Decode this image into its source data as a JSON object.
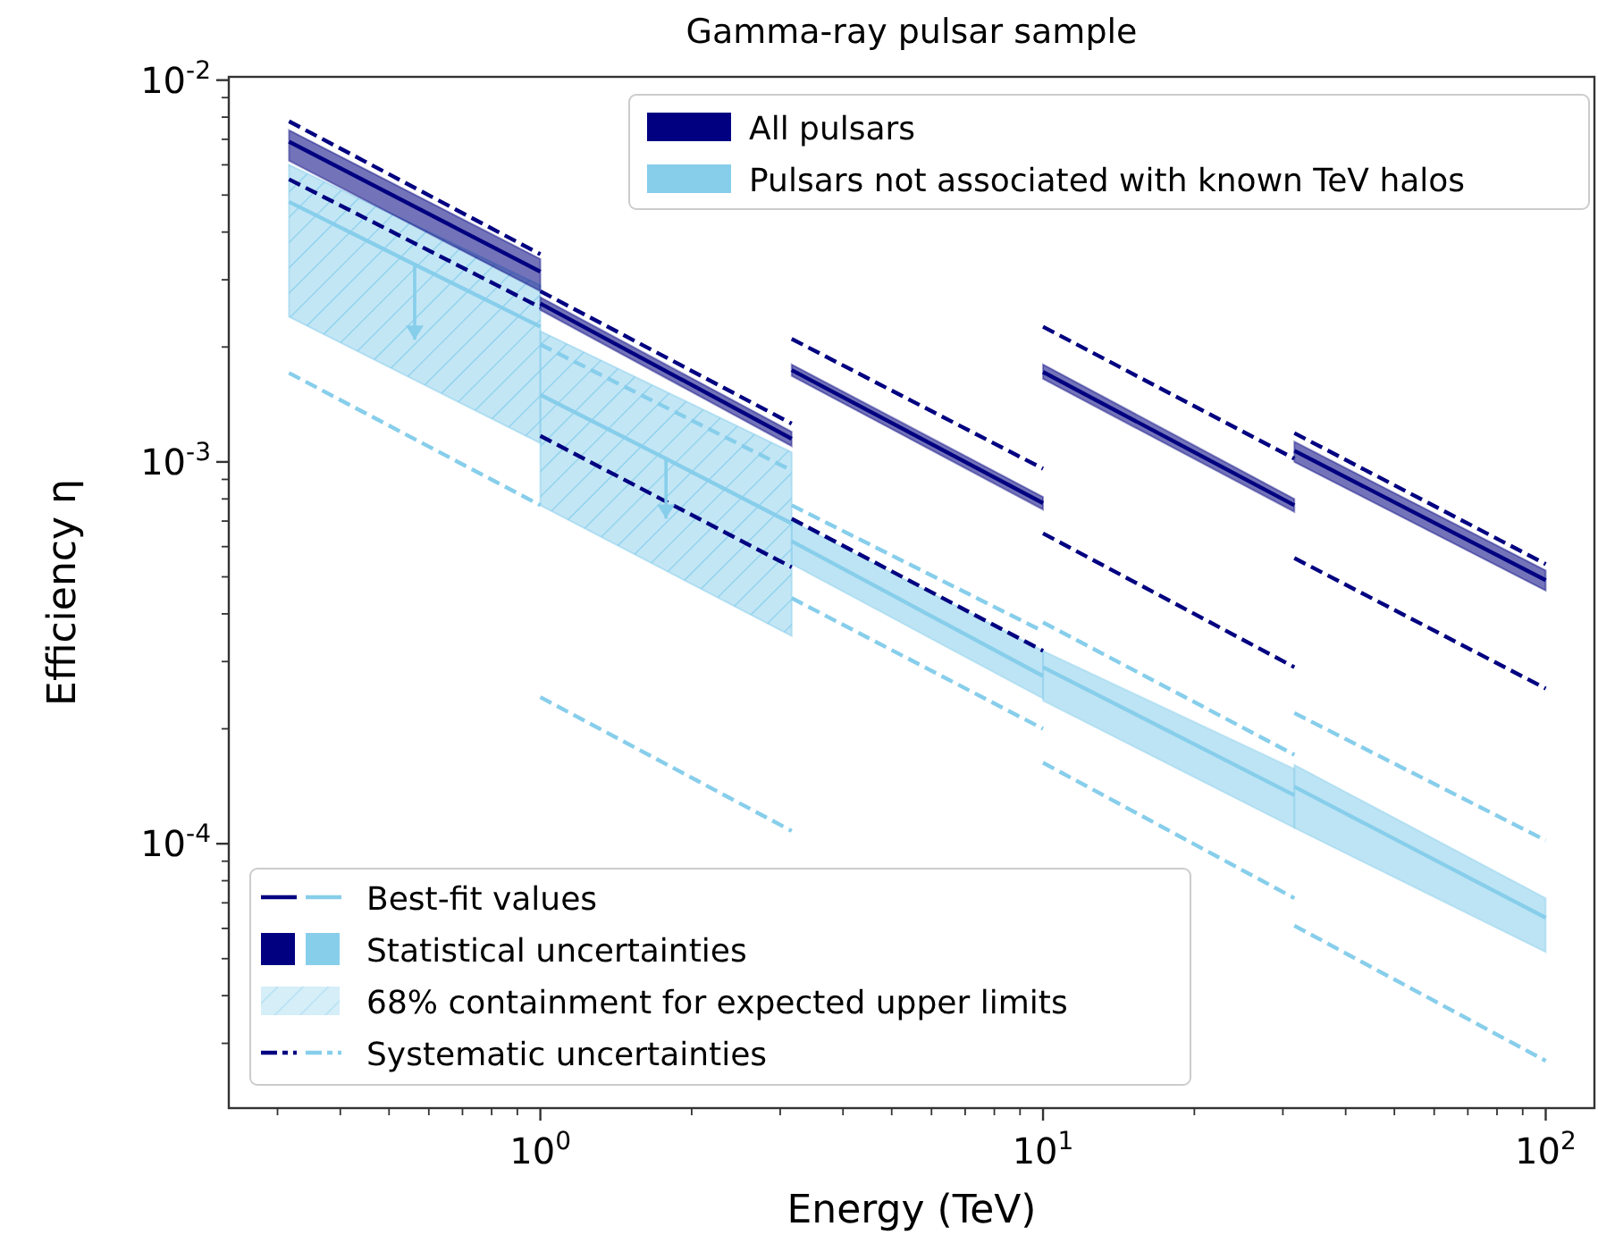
{
  "chart_data": {
    "type": "line",
    "title": "Gamma-ray pulsar sample",
    "xlabel": "Energy (TeV)",
    "ylabel": "Efficiency η",
    "log": "xy",
    "grid": false,
    "legend": "top right",
    "xlim": [
      0.24,
      125
    ],
    "ylim": [
      2.03e-05,
      0.0102
    ],
    "xticks": [
      {
        "value": 0.3,
        "label": null
      },
      {
        "value": 0.4,
        "label": null
      },
      {
        "value": 0.5,
        "label": null
      },
      {
        "value": 0.6,
        "label": null
      },
      {
        "value": 0.7,
        "label": null
      },
      {
        "value": 0.8,
        "label": null
      },
      {
        "value": 0.9,
        "label": null
      },
      {
        "value": 1,
        "label": "10$^{0}$"
      },
      {
        "value": 2,
        "label": null
      },
      {
        "value": 3,
        "label": null
      },
      {
        "value": 4,
        "label": null
      },
      {
        "value": 5,
        "label": null
      },
      {
        "value": 6,
        "label": null
      },
      {
        "value": 7,
        "label": null
      },
      {
        "value": 8,
        "label": null
      },
      {
        "value": 9,
        "label": null
      },
      {
        "value": 10,
        "label": "10$^{1}$"
      },
      {
        "value": 20,
        "label": null
      },
      {
        "value": 30,
        "label": null
      },
      {
        "value": 40,
        "label": null
      },
      {
        "value": 50,
        "label": null
      },
      {
        "value": 60,
        "label": null
      },
      {
        "value": 70,
        "label": null
      },
      {
        "value": 80,
        "label": null
      },
      {
        "value": 90,
        "label": null
      },
      {
        "value": 100,
        "label": "10$^{2}$"
      }
    ],
    "yticks": [
      {
        "value": 3e-05,
        "label": null
      },
      {
        "value": 4e-05,
        "label": null
      },
      {
        "value": 5e-05,
        "label": null
      },
      {
        "value": 6e-05,
        "label": null
      },
      {
        "value": 7e-05,
        "label": null
      },
      {
        "value": 8e-05,
        "label": null
      },
      {
        "value": 9e-05,
        "label": null
      },
      {
        "value": 0.0001,
        "label": "10$^{-4}$"
      },
      {
        "value": 0.0002,
        "label": null
      },
      {
        "value": 0.0003,
        "label": null
      },
      {
        "value": 0.0004,
        "label": null
      },
      {
        "value": 0.0005,
        "label": null
      },
      {
        "value": 0.0006,
        "label": null
      },
      {
        "value": 0.0007,
        "label": null
      },
      {
        "value": 0.0008,
        "label": null
      },
      {
        "value": 0.0009,
        "label": null
      },
      {
        "value": 0.001,
        "label": "10$^{-3}$"
      },
      {
        "value": 0.002,
        "label": null
      },
      {
        "value": 0.003,
        "label": null
      },
      {
        "value": 0.004,
        "label": null
      },
      {
        "value": 0.005,
        "label": null
      },
      {
        "value": 0.006,
        "label": null
      },
      {
        "value": 0.007,
        "label": null
      },
      {
        "value": 0.008,
        "label": null
      },
      {
        "value": 0.009,
        "label": null
      },
      {
        "value": 0.01,
        "label": "10$^{-2}$"
      }
    ],
    "annotations": [
      "Best-fit values",
      "Statistical uncertainties",
      "Systematic uncertainties"
    ],
    "series": [
      {
        "name": "All pulsars",
        "color": "#000080",
        "x": [
          0.3162,
          1
        ],
        "values": [
          0.0069,
          0.00315
        ],
        "lower": [
          0.00615,
          0.0028
        ],
        "upper": [
          0.0074,
          0.0034
        ]
      },
      {
        "color": "#000080",
        "x": [
          1,
          3.162
        ],
        "values": [
          0.0026,
          0.00115
        ],
        "lower": [
          0.0025,
          0.0011
        ],
        "upper": [
          0.0027,
          0.0012
        ]
      },
      {
        "color": "#000080",
        "x": [
          3.162,
          10
        ],
        "values": [
          0.00174,
          0.00078
        ],
        "lower": [
          0.00168,
          0.00075
        ],
        "upper": [
          0.0018,
          0.00081
        ]
      },
      {
        "color": "#000080",
        "x": [
          10,
          31.62
        ],
        "values": [
          0.00172,
          0.00077
        ],
        "lower": [
          0.00165,
          0.00074
        ],
        "upper": [
          0.0018,
          0.0008
        ]
      },
      {
        "color": "#000080",
        "x": [
          31.62,
          100
        ],
        "values": [
          0.00107,
          0.00049
        ],
        "lower": [
          0.001,
          0.00046
        ],
        "upper": [
          0.00113,
          0.00052
        ]
      },
      {
        "name": "Pulsars not associated with known TeV halos",
        "color": "#87ceeb",
        "x": [
          0.3162,
          0.5623,
          1
        ],
        "values": [
          0.0048,
          0.00329,
          0.00226
        ],
        "errors": [
          null,
          [
            0.00209,
            0.00329
          ],
          null
        ]
      },
      {
        "color": "#87ceeb",
        "x": [
          1,
          1.778,
          3.162
        ],
        "values": [
          0.0015,
          0.00102,
          0.00069
        ],
        "errors": [
          null,
          [
            0.00071,
            0.00102
          ],
          null
        ]
      },
      {
        "color": "#87ceeb",
        "x": [
          3.162,
          10
        ],
        "values": [
          0.00062,
          0.000275
        ],
        "lower": [
          0.00054,
          0.00024
        ],
        "upper": [
          0.0007,
          0.00032
        ]
      },
      {
        "color": "#87ceeb",
        "x": [
          10,
          31.62
        ],
        "values": [
          0.00029,
          0.000134
        ],
        "lower": [
          0.000237,
          0.00011
        ],
        "upper": [
          0.00032,
          0.000157
        ]
      },
      {
        "color": "#87ceeb",
        "x": [
          31.62,
          100
        ],
        "values": [
          0.000141,
          6.4e-05
        ],
        "lower": [
          0.00011,
          5.2e-05
        ],
        "upper": [
          0.000161,
          7.2e-05
        ]
      },
      {
        "name": "68% containment for expected upper limits",
        "type": "area",
        "color": "#87ceeb",
        "x": [
          0.3162,
          1
        ],
        "values": [
          null,
          null
        ],
        "lower": [
          0.0024,
          0.00112
        ],
        "upper": [
          0.006,
          0.0029
        ]
      },
      {
        "type": "area",
        "color": "#87ceeb",
        "x": [
          1,
          3.162
        ],
        "values": [
          null,
          null
        ],
        "lower": [
          0.00077,
          0.00035
        ],
        "upper": [
          0.0022,
          0.00106
        ]
      },
      {
        "line_style": "dashed",
        "color": "#000080",
        "x": [
          0.3162,
          1
        ],
        "values": [
          0.0078,
          0.0035
        ]
      },
      {
        "line_style": "dashed",
        "color": "#000080",
        "x": [
          1,
          3.162
        ],
        "values": [
          0.0028,
          0.00126
        ]
      },
      {
        "line_style": "dashed",
        "color": "#000080",
        "x": [
          3.162,
          10
        ],
        "values": [
          0.0021,
          0.00096
        ]
      },
      {
        "line_style": "dashed",
        "color": "#000080",
        "x": [
          10,
          31.62
        ],
        "values": [
          0.00226,
          0.00102
        ]
      },
      {
        "line_style": "dashed",
        "color": "#000080",
        "x": [
          31.62,
          100
        ],
        "values": [
          0.00119,
          0.00054
        ]
      },
      {
        "line_style": "dashed",
        "color": "#000080",
        "x": [
          0.3162,
          1
        ],
        "values": [
          0.0055,
          0.00254
        ]
      },
      {
        "line_style": "dashed",
        "color": "#000080",
        "x": [
          1,
          3.162
        ],
        "values": [
          0.00117,
          0.00053
        ]
      },
      {
        "line_style": "dashed",
        "color": "#000080",
        "x": [
          3.162,
          10
        ],
        "values": [
          0.00071,
          0.00032
        ]
      },
      {
        "line_style": "dashed",
        "color": "#000080",
        "x": [
          10,
          31.62
        ],
        "values": [
          0.00065,
          0.00029
        ]
      },
      {
        "line_style": "dashed",
        "color": "#000080",
        "x": [
          31.62,
          100
        ],
        "values": [
          0.00056,
          0.000255
        ]
      },
      {
        "line_style": "dashed",
        "color": "#87ceeb",
        "x": [
          1,
          3.162
        ],
        "values": [
          0.00203,
          0.00095
        ]
      },
      {
        "line_style": "dashed",
        "color": "#87ceeb",
        "x": [
          3.162,
          10
        ],
        "values": [
          0.00077,
          0.00036
        ]
      },
      {
        "line_style": "dashed",
        "color": "#87ceeb",
        "x": [
          10,
          31.62
        ],
        "values": [
          0.00038,
          0.000171
        ]
      },
      {
        "line_style": "dashed",
        "color": "#87ceeb",
        "x": [
          31.62,
          100
        ],
        "values": [
          0.00022,
          0.000102
        ]
      },
      {
        "line_style": "dashed",
        "color": "#87ceeb",
        "x": [
          0.3162,
          1
        ],
        "values": [
          0.00171,
          0.00077
        ]
      },
      {
        "line_style": "dashed",
        "color": "#87ceeb",
        "x": [
          1,
          3.162
        ],
        "values": [
          0.000242,
          0.000108
        ]
      },
      {
        "line_style": "dashed",
        "color": "#87ceeb",
        "x": [
          3.162,
          10
        ],
        "values": [
          0.00044,
          0.0002
        ]
      },
      {
        "line_style": "dashed",
        "color": "#87ceeb",
        "x": [
          10,
          31.62
        ],
        "values": [
          0.000163,
          7.2e-05
        ]
      },
      {
        "line_style": "dashed",
        "color": "#87ceeb",
        "x": [
          31.62,
          100
        ],
        "values": [
          6.1e-05,
          2.7e-05
        ]
      }
    ]
  }
}
